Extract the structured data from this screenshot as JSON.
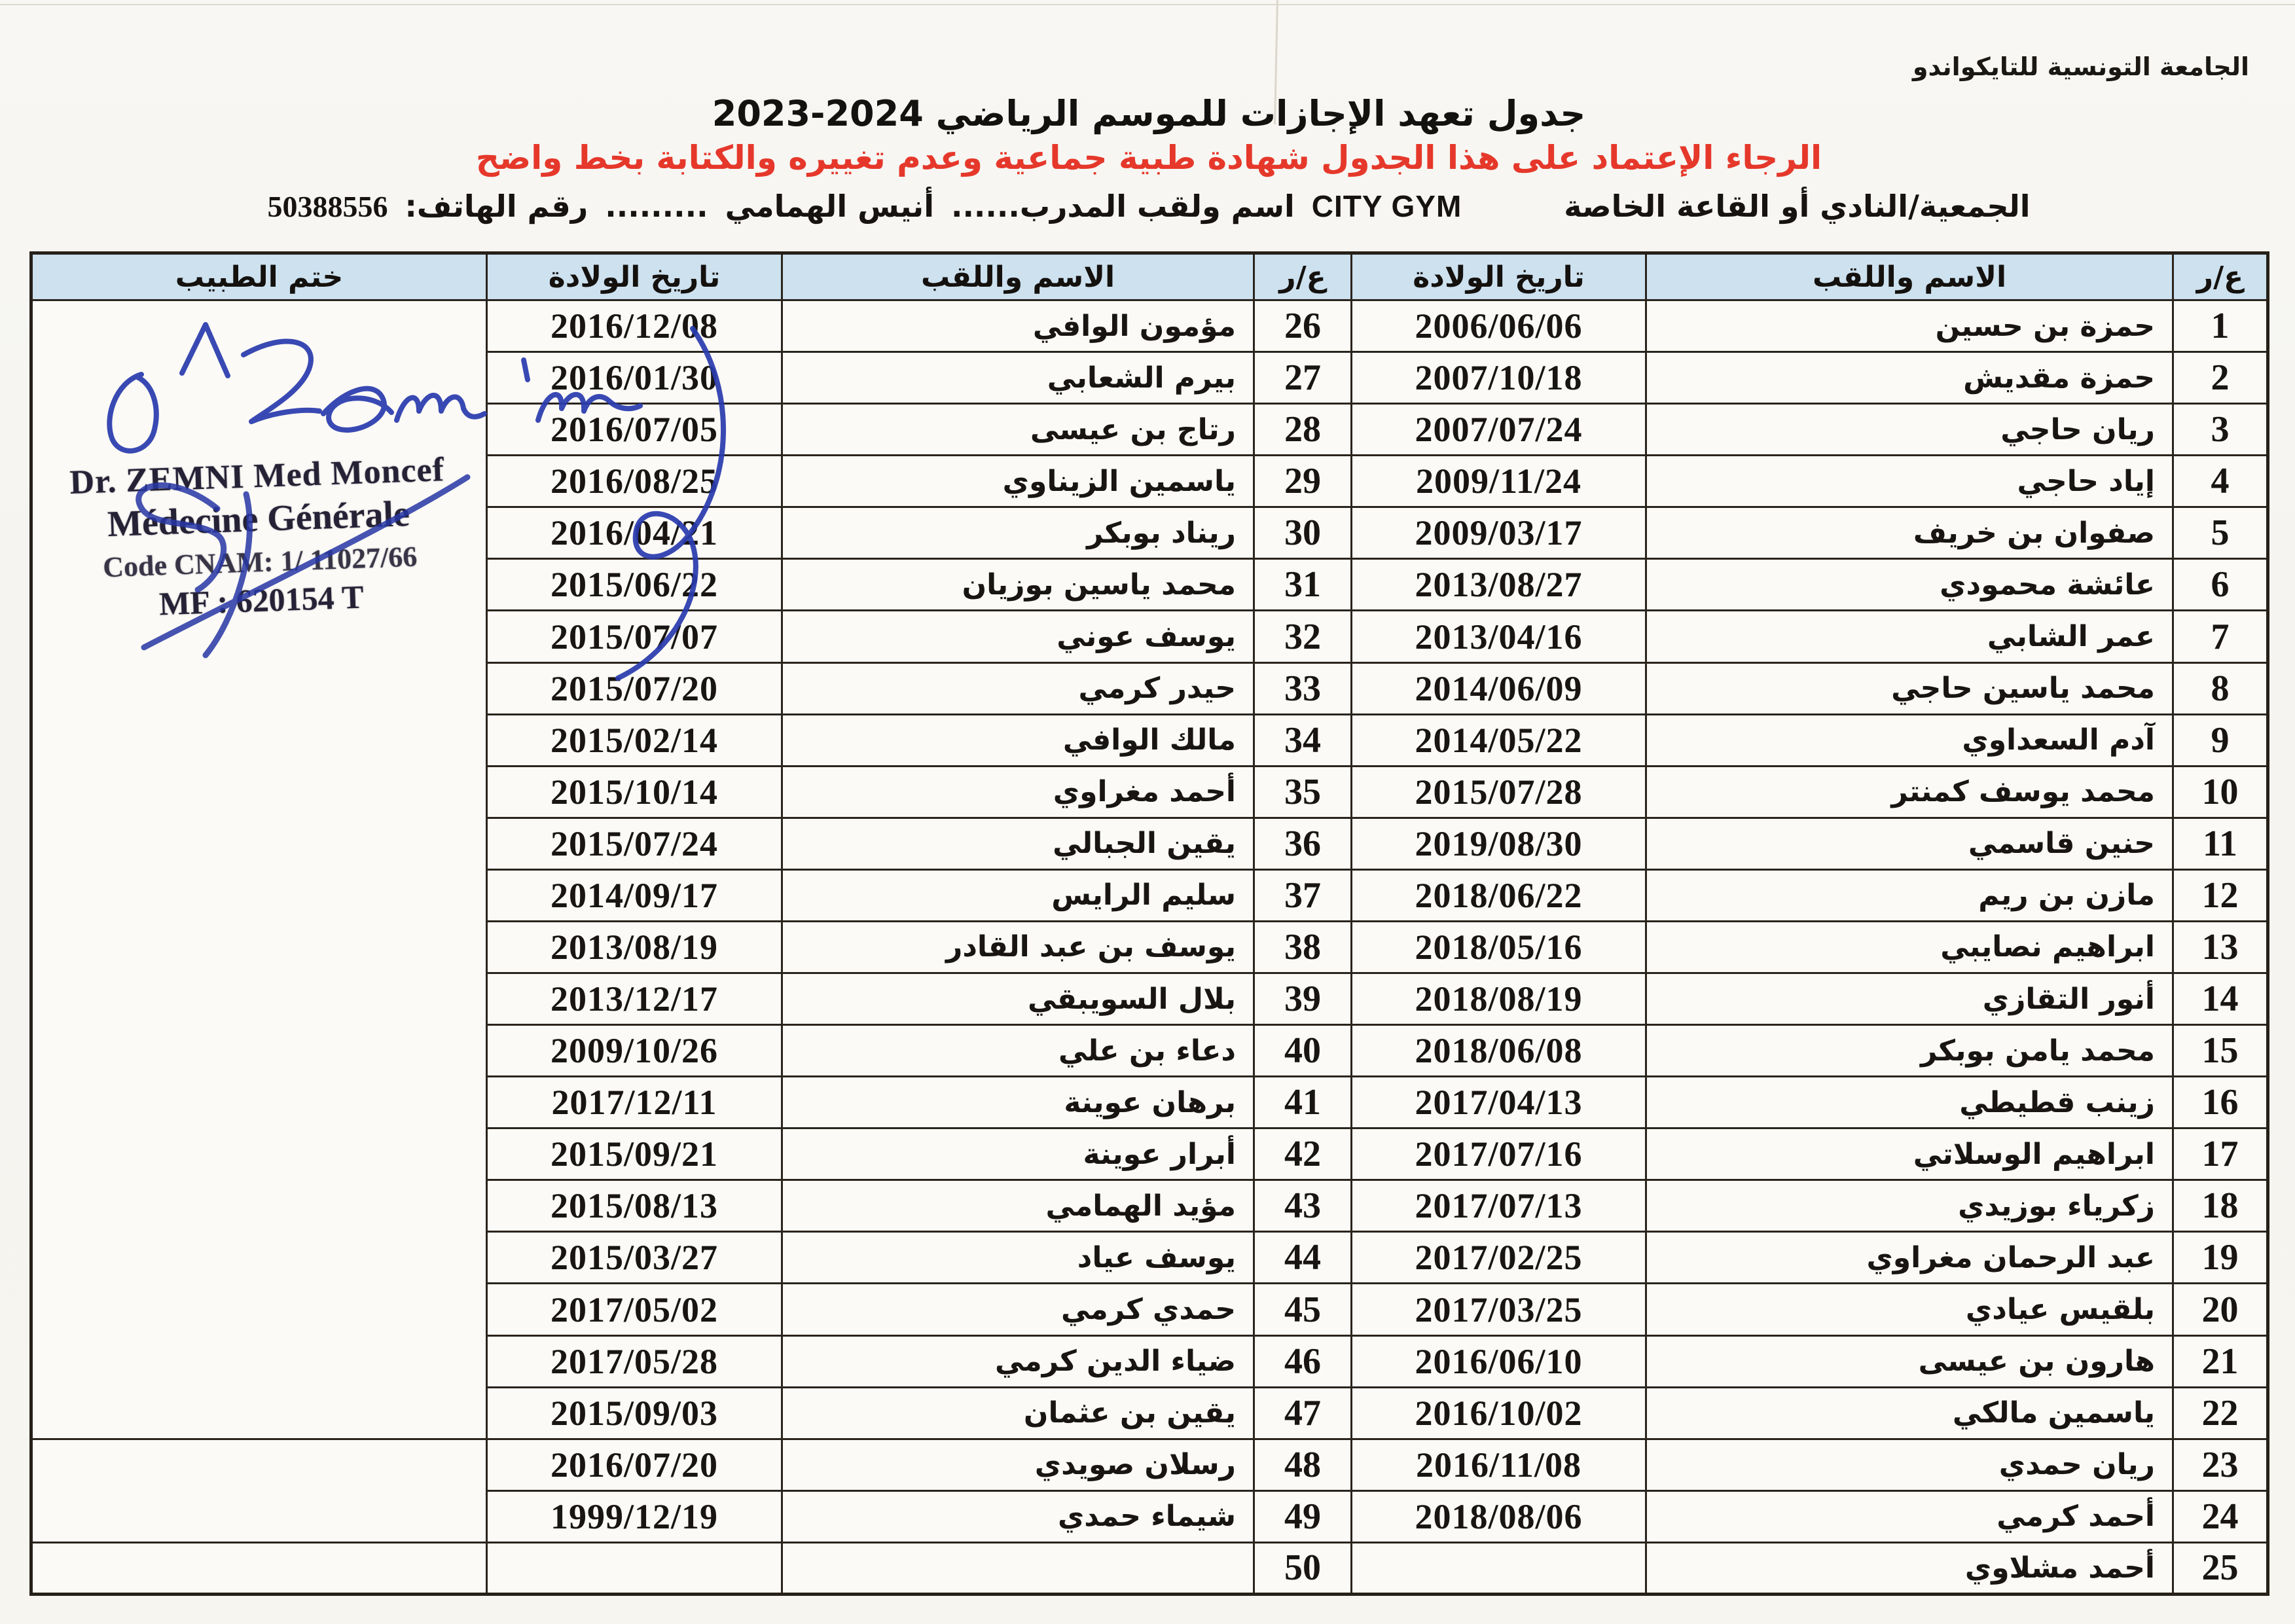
{
  "page": {
    "org_name": "الجامعة التونسية للتايكواندو",
    "title": "جدول تعهد الإجازات للموسم الرياضي 2024-2023",
    "red_note": "الرجاء الإعتماد على هذا الجدول شهادة طبية جماعية وعدم تغييره والكتابة بخط واضح",
    "info": {
      "club_label": "الجمعية/النادي أو القاعة الخاصة",
      "club_value": "CITY GYM",
      "coach_label": "اسم ولقب المدرب......",
      "coach_value": "أنيس الهمامي",
      "dots": ".........",
      "phone_label": "رقم الهاتف:",
      "phone_value": "50388556"
    }
  },
  "table": {
    "headers": {
      "rn": "ع/ر",
      "name": "الاسم واللقب",
      "dob": "تاريخ الولادة",
      "stamp": "ختم الطبيب"
    },
    "rows": [
      {
        "n": "1",
        "name": "حمزة بن حسين",
        "dob": "2006/06/06",
        "n2": "26",
        "name2": "مؤمون الوافي",
        "dob2": "2016/12/08"
      },
      {
        "n": "2",
        "name": "حمزة مقديش",
        "dob": "2007/10/18",
        "n2": "27",
        "name2": "بيرم الشعابي",
        "dob2": "2016/01/30"
      },
      {
        "n": "3",
        "name": "ريان حاجي",
        "dob": "2007/07/24",
        "n2": "28",
        "name2": "رتاج بن عيسى",
        "dob2": "2016/07/05"
      },
      {
        "n": "4",
        "name": "إياد حاجي",
        "dob": "2009/11/24",
        "n2": "29",
        "name2": "ياسمين الزيناوي",
        "dob2": "2016/08/25"
      },
      {
        "n": "5",
        "name": "صفوان بن خريف",
        "dob": "2009/03/17",
        "n2": "30",
        "name2": "ريناد بوبكر",
        "dob2": "2016/04/21"
      },
      {
        "n": "6",
        "name": "عائشة محمودي",
        "dob": "2013/08/27",
        "n2": "31",
        "name2": "محمد ياسين بوزيان",
        "dob2": "2015/06/22"
      },
      {
        "n": "7",
        "name": "عمر الشابي",
        "dob": "2013/04/16",
        "n2": "32",
        "name2": "يوسف عوني",
        "dob2": "2015/07/07"
      },
      {
        "n": "8",
        "name": "محمد ياسين حاجي",
        "dob": "2014/06/09",
        "n2": "33",
        "name2": "حيدر كرمي",
        "dob2": "2015/07/20"
      },
      {
        "n": "9",
        "name": "آدم السعداوي",
        "dob": "2014/05/22",
        "n2": "34",
        "name2": "مالك الوافي",
        "dob2": "2015/02/14"
      },
      {
        "n": "10",
        "name": "محمد يوسف كمنتر",
        "dob": "2015/07/28",
        "n2": "35",
        "name2": "أحمد مغراوي",
        "dob2": "2015/10/14"
      },
      {
        "n": "11",
        "name": "حنين قاسمي",
        "dob": "2019/08/30",
        "n2": "36",
        "name2": "يقين الجبالي",
        "dob2": "2015/07/24"
      },
      {
        "n": "12",
        "name": "مازن بن ريم",
        "dob": "2018/06/22",
        "n2": "37",
        "name2": "سليم الرايس",
        "dob2": "2014/09/17"
      },
      {
        "n": "13",
        "name": "ابراهيم نصايبي",
        "dob": "2018/05/16",
        "n2": "38",
        "name2": "يوسف بن عبد القادر",
        "dob2": "2013/08/19"
      },
      {
        "n": "14",
        "name": "أنور التقازي",
        "dob": "2018/08/19",
        "n2": "39",
        "name2": "بلال السويبقي",
        "dob2": "2013/12/17"
      },
      {
        "n": "15",
        "name": "محمد يامن بوبكر",
        "dob": "2018/06/08",
        "n2": "40",
        "name2": "دعاء بن علي",
        "dob2": "2009/10/26"
      },
      {
        "n": "16",
        "name": "زينب قطيطي",
        "dob": "2017/04/13",
        "n2": "41",
        "name2": "برهان عوينة",
        "dob2": "2017/12/11"
      },
      {
        "n": "17",
        "name": "ابراهيم الوسلاتي",
        "dob": "2017/07/16",
        "n2": "42",
        "name2": "أبرار عوينة",
        "dob2": "2015/09/21"
      },
      {
        "n": "18",
        "name": "زكرياء بوزيدي",
        "dob": "2017/07/13",
        "n2": "43",
        "name2": "مؤيد الهمامي",
        "dob2": "2015/08/13"
      },
      {
        "n": "19",
        "name": "عبد الرحمان مغراوي",
        "dob": "2017/02/25",
        "n2": "44",
        "name2": "يوسف عياد",
        "dob2": "2015/03/27"
      },
      {
        "n": "20",
        "name": "بلقيس عيادي",
        "dob": "2017/03/25",
        "n2": "45",
        "name2": "حمدي كرمي",
        "dob2": "2017/05/02"
      },
      {
        "n": "21",
        "name": "هارون بن عيسى",
        "dob": "2016/06/10",
        "n2": "46",
        "name2": "ضياء الدين كرمي",
        "dob2": "2017/05/28"
      },
      {
        "n": "22",
        "name": "ياسمين مالكي",
        "dob": "2016/10/02",
        "n2": "47",
        "name2": "يقين بن عثمان",
        "dob2": "2015/09/03"
      },
      {
        "n": "23",
        "name": "ريان حمدي",
        "dob": "2016/11/08",
        "n2": "48",
        "name2": "رسلان صويدي",
        "dob2": "2016/07/20"
      },
      {
        "n": "24",
        "name": "أحمد كرمي",
        "dob": "2018/08/06",
        "n2": "49",
        "name2": "شيماء حمدي",
        "dob2": "1999/12/19"
      },
      {
        "n": "25",
        "name": "أحمد مشلاوي",
        "dob": "",
        "n2": "50",
        "name2": "",
        "dob2": ""
      }
    ]
  },
  "stamp": {
    "line1": "Dr. ZEMNI Med Moncef",
    "line2": "Médecine Générale",
    "line3": "Code CNAM: 1/ 11027/66",
    "line4": "MF : 620154 T"
  },
  "colors": {
    "header_fill": "#cde1ef",
    "red_note": "#e5382b",
    "signature_blue": "#2b3cae",
    "stamp_ink": "#262236"
  }
}
